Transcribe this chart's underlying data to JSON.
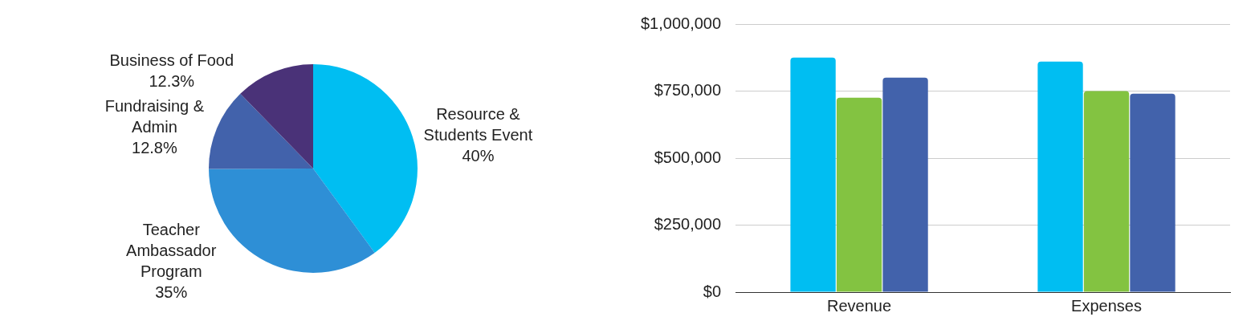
{
  "chart_data": [
    {
      "type": "pie",
      "categories": [
        "Resource & Students Event",
        "Teacher Ambassador Program",
        "Fundraising & Admin",
        "Business of Food"
      ],
      "values": [
        40,
        35,
        12.8,
        12.3
      ],
      "value_labels": [
        "40%",
        "35%",
        "12.8%",
        "12.3%"
      ],
      "colors": [
        "#00bef2",
        "#2e8fd6",
        "#4262ab",
        "#4a3278"
      ],
      "legend": false
    },
    {
      "type": "bar",
      "categories": [
        "Revenue",
        "Expenses"
      ],
      "series": [
        {
          "color": "#00bef2",
          "values": [
            875000,
            860000
          ]
        },
        {
          "color": "#83c341",
          "values": [
            725000,
            750000
          ]
        },
        {
          "color": "#4262ab",
          "values": [
            800000,
            740000
          ]
        }
      ],
      "ylim": [
        0,
        1000000
      ],
      "yticks": [
        {
          "value": 0,
          "label": "$0"
        },
        {
          "value": 250000,
          "label": "$250,000"
        },
        {
          "value": 500000,
          "label": "$500,000"
        },
        {
          "value": 750000,
          "label": "$750,000"
        },
        {
          "value": 1000000,
          "label": "$1,000,000"
        }
      ],
      "grid": "y",
      "legend": false
    }
  ]
}
